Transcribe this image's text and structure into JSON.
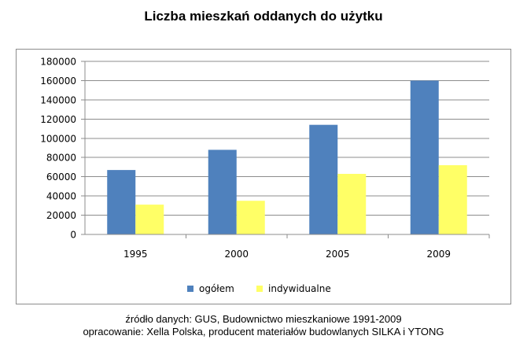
{
  "chart_data": {
    "type": "bar",
    "title": "Liczba mieszkań oddanych do użytku",
    "categories": [
      "1995",
      "2000",
      "2005",
      "2009"
    ],
    "series": [
      {
        "name": "ogółem",
        "values": [
          67000,
          88000,
          114000,
          160000
        ],
        "color": "#4f81bd"
      },
      {
        "name": "indywidualne",
        "values": [
          31000,
          35000,
          63000,
          72000
        ],
        "color": "#ffff66"
      }
    ],
    "ylim": [
      0,
      180000
    ],
    "yticks": [
      "0",
      "20000",
      "40000",
      "60000",
      "80000",
      "100000",
      "120000",
      "140000",
      "160000",
      "180000"
    ],
    "grid": true,
    "legend": "bottom"
  },
  "legend": {
    "items": [
      {
        "label": "ogółem",
        "color": "#4f81bd"
      },
      {
        "label": "indywidualne",
        "color": "#ffff66"
      }
    ]
  },
  "footer": {
    "source": "źródło danych: GUS, Budownictwo mieszkaniowe 1991-2009",
    "prepared": "opracowanie: Xella Polska, producent materiałów budowlanych SILKA i YTONG"
  }
}
